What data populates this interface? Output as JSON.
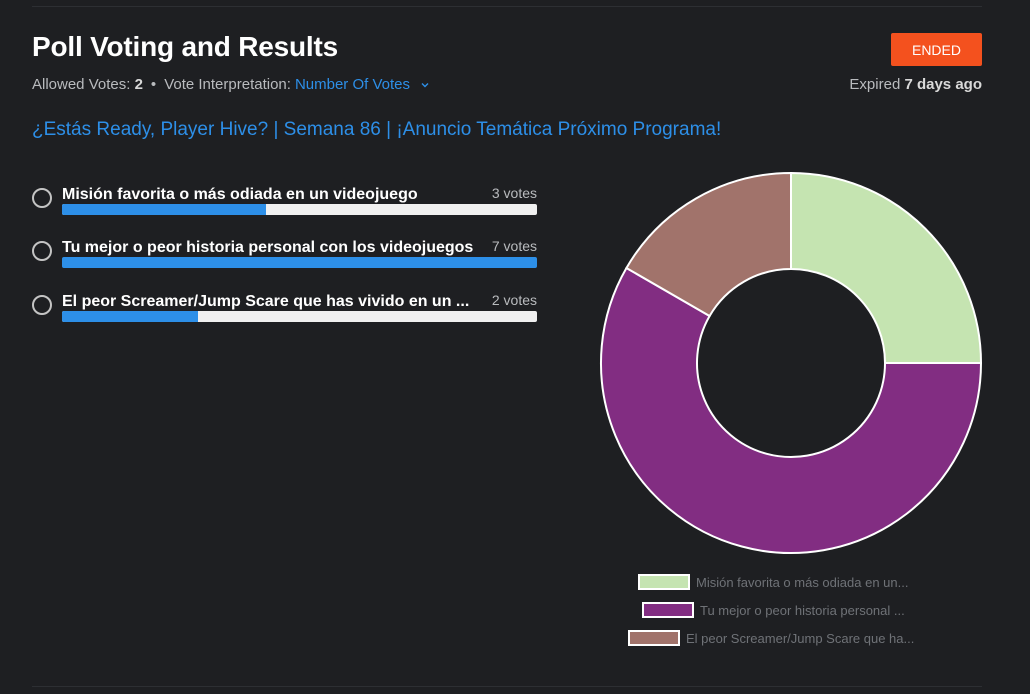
{
  "header": {
    "title": "Poll Voting and Results",
    "status": "ENDED",
    "allowed_votes_label": "Allowed Votes:",
    "allowed_votes_value": "2",
    "separator": "•",
    "interpretation_label": "Vote Interpretation:",
    "interpretation_value": "Number Of Votes",
    "expired_label": "Expired",
    "expired_value": "7 days ago"
  },
  "poll": {
    "question": "¿Estás Ready, Player Hive? | Semana 86 | ¡Anuncio Temática Próximo Programa!",
    "options": [
      {
        "label": "Misión favorita o más odiada en un videojuego",
        "votes_text": "3 votes",
        "votes": 3
      },
      {
        "label": "Tu mejor o peor historia personal con los videojuegos",
        "votes_text": "7 votes",
        "votes": 7
      },
      {
        "label": "El peor Screamer/Jump Scare que has vivido en un ...",
        "votes_text": "2 votes",
        "votes": 2
      }
    ]
  },
  "colors": {
    "accent": "#2d8fe8",
    "status": "#f4511e",
    "slice1": "#c5e4b1",
    "slice2": "#822d82",
    "slice3": "#a1736b"
  },
  "chart_data": {
    "type": "pie",
    "categories": [
      "Misión favorita o más odiada en un...",
      "Tu mejor o peor historia personal ...",
      "El peor Screamer/Jump Scare que ha..."
    ],
    "values": [
      3,
      7,
      2
    ],
    "legend_position": "bottom"
  }
}
